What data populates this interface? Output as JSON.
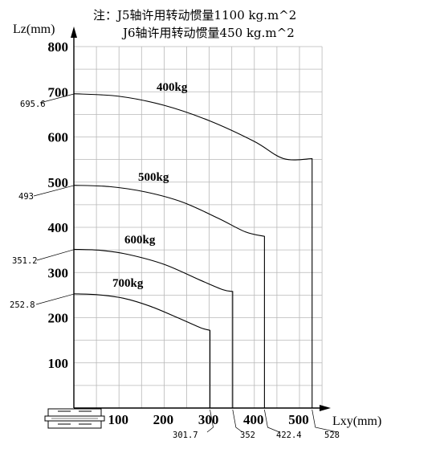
{
  "notes": [
    "注：J5轴许用转动惯量1100 kg.m^2",
    "J6轴许用转动惯量450 kg.m^2"
  ],
  "chart_data": {
    "type": "line",
    "xlabel": "Lxy(mm)",
    "ylabel": "Lz(mm)",
    "xlim": [
      0,
      550
    ],
    "ylim": [
      0,
      800
    ],
    "grid": true,
    "x_ticks": [
      100,
      200,
      300,
      400,
      500
    ],
    "y_ticks": [
      100,
      200,
      300,
      400,
      500,
      600,
      700,
      800
    ],
    "series": [
      {
        "name": "400kg",
        "lz_at_zero": 695.6,
        "lz_at_zero_label": "695.6",
        "max_lxy": 528,
        "max_lxy_label": "528",
        "points": [
          [
            0,
            695.6
          ],
          [
            100,
            690
          ],
          [
            200,
            670
          ],
          [
            300,
            636
          ],
          [
            400,
            590
          ],
          [
            465,
            552
          ],
          [
            528,
            552
          ],
          [
            528,
            0
          ]
        ]
      },
      {
        "name": "500kg",
        "lz_at_zero": 493,
        "lz_at_zero_label": "493",
        "max_lxy": 422.4,
        "max_lxy_label": "422.4",
        "points": [
          [
            0,
            493
          ],
          [
            80,
            490
          ],
          [
            160,
            478
          ],
          [
            240,
            456
          ],
          [
            320,
            420
          ],
          [
            380,
            390
          ],
          [
            422.4,
            380
          ],
          [
            422.4,
            0
          ]
        ]
      },
      {
        "name": "600kg",
        "lz_at_zero": 351.2,
        "lz_at_zero_label": "351.2",
        "max_lxy": 352,
        "max_lxy_label": "352",
        "points": [
          [
            0,
            351.2
          ],
          [
            60,
            349
          ],
          [
            120,
            340
          ],
          [
            200,
            318
          ],
          [
            280,
            283
          ],
          [
            330,
            262
          ],
          [
            352,
            258
          ],
          [
            352,
            0
          ]
        ]
      },
      {
        "name": "700kg",
        "lz_at_zero": 252.8,
        "lz_at_zero_label": "252.8",
        "max_lxy": 301.7,
        "max_lxy_label": "301.7",
        "points": [
          [
            0,
            252.8
          ],
          [
            50,
            251
          ],
          [
            110,
            243
          ],
          [
            170,
            225
          ],
          [
            230,
            200
          ],
          [
            280,
            178
          ],
          [
            301.7,
            172
          ],
          [
            301.7,
            0
          ]
        ]
      }
    ]
  }
}
